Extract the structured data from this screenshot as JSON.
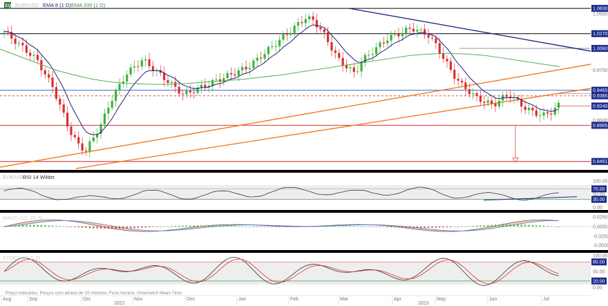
{
  "header": {
    "logo_text": "EQ",
    "symbol_text": "EUR/USD",
    "ema8_label": "EMA 8 (1 D)",
    "ema200_label": "EMA 200 (1 D)"
  },
  "colors": {
    "ema8": "#1f1f7a",
    "ema200": "#5ba85b",
    "trend_blue": "#1a2a8c",
    "orange": "#f07c1e",
    "red_level": "#e04848",
    "blue_level": "#3a6fc4",
    "candle_up": "#3bb33b",
    "candle_down": "#d93030",
    "rsi_line": "#333333",
    "macd_up": "#3bb33b",
    "macd_down": "#d93030",
    "stoch_k": "#333333",
    "stoch_d": "#d93030"
  },
  "price_panel": {
    "axis_labels": [
      "1.0630",
      "1.0550",
      "1.0270",
      "1.0060",
      "0.9750",
      "0.9465",
      "0.9385",
      "0.9240",
      "0.9040",
      "0.8965",
      "0.8451"
    ],
    "tags": [
      {
        "text": "1.0630",
        "color": "#1a2a8c",
        "value": 1.063
      },
      {
        "text": "1.0270",
        "color": "#1a2a8c",
        "value": 1.027
      },
      {
        "text": "1.0060",
        "color": "#1a2a8c",
        "value": 1.006
      },
      {
        "text": "0.9465",
        "color": "#1a2a8c",
        "value": 0.9465
      },
      {
        "text": "0.9385",
        "color": "#1a2a8c",
        "value": 0.9385
      },
      {
        "text": "0.9240",
        "color": "#1a2a8c",
        "value": 0.924
      },
      {
        "text": "0.8965",
        "color": "#1a2a8c",
        "value": 0.8965
      },
      {
        "text": "0.8451",
        "color": "#1a2a8c",
        "value": 0.8451
      }
    ]
  },
  "rsi_panel": {
    "title": "RSI 14 Wilder",
    "axis_labels": [
      "100.00",
      "70.00",
      "50.00",
      "30.00",
      "0.00"
    ]
  },
  "macd_panel": {
    "title": "MACD (12, 26, 9)",
    "axis_labels": [
      "0.0250",
      "0.0000",
      "-0.0250",
      "-0.0500"
    ]
  },
  "stoch_panel": {
    "title": "STOCH (5, 3, 3)",
    "axis_labels": [
      "100.00",
      "80.00",
      "50.00",
      "20.00",
      "0.00"
    ]
  },
  "footer": {
    "note": "Preço indicativo. Preços com atraso de 15 minutos. Fuso horário: Greenwich Mean Time",
    "months": [
      "Aug",
      "Sep",
      "Oct",
      "Nov",
      "Dec",
      "Jan",
      "Feb",
      "Mar",
      "Apr",
      "May",
      "Jun",
      "Jul"
    ],
    "years": [
      "2022",
      "2023"
    ]
  },
  "chart_data": {
    "type": "candlestick",
    "ylim": [
      0.835,
      1.069
    ],
    "horizontal_levels": [
      1.063,
      1.027,
      0.9465,
      0.9385,
      0.8965,
      0.8451
    ],
    "close_path": [
      1.03,
      1.02,
      1.01,
      1.0,
      0.99,
      0.97,
      0.95,
      0.92,
      0.89,
      0.87,
      0.86,
      0.88,
      0.9,
      0.93,
      0.95,
      0.97,
      0.98,
      0.99,
      0.98,
      0.97,
      0.96,
      0.95,
      0.94,
      0.945,
      0.95,
      0.955,
      0.96,
      0.965,
      0.97,
      0.975,
      0.98,
      0.99,
      1.0,
      1.01,
      1.02,
      1.03,
      1.04,
      1.05,
      1.045,
      1.03,
      1.01,
      0.99,
      0.98,
      0.97,
      0.99,
      1.0,
      1.01,
      1.02,
      1.025,
      1.03,
      1.035,
      1.03,
      1.025,
      1.01,
      0.99,
      0.97,
      0.955,
      0.945,
      0.935,
      0.93,
      0.925,
      0.935,
      0.94,
      0.93,
      0.92,
      0.915,
      0.91,
      0.915,
      0.925
    ],
    "ema200": [
      1.005,
      0.995,
      0.985,
      0.975,
      0.968,
      0.962,
      0.958,
      0.956,
      0.955,
      0.955,
      0.956,
      0.958,
      0.96,
      0.962,
      0.965,
      0.968,
      0.972,
      0.976,
      0.98,
      0.984,
      0.988,
      0.992,
      0.996,
      0.998,
      0.999,
      0.998,
      0.996,
      0.992,
      0.988,
      0.984,
      0.98
    ]
  }
}
